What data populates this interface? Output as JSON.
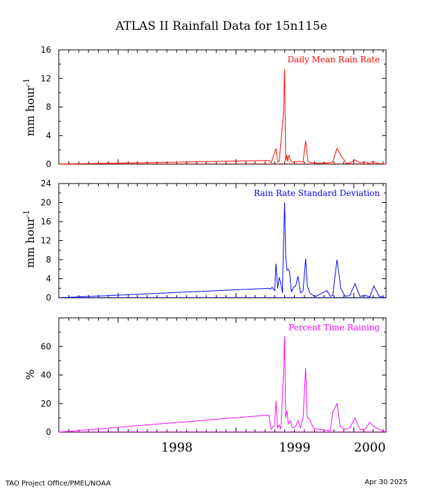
{
  "figure": {
    "title": "ATLAS II Rainfall Data for 15n115e",
    "footer_left": "TAO Project Office/PMEL/NOAA",
    "footer_right": "Apr 30 2025",
    "x_year_labels": [
      "1998",
      "1999",
      "2000"
    ]
  },
  "chart_data": [
    {
      "type": "line",
      "title": "Daily Mean Rain Rate",
      "ylabel": "mm hour",
      "ylabel_superscript": "-1",
      "ylim": [
        0,
        16
      ],
      "yticks": [
        "0",
        "4",
        "8",
        "12",
        "16"
      ],
      "xlim": [
        "1997-07-01",
        "2000-04-10"
      ],
      "color": "#ff0000",
      "grid": false,
      "legend": "none",
      "x": [
        "1997-07-01",
        "1999-04-13",
        "1999-04-20",
        "1999-05-05",
        "1999-05-10",
        "1999-05-15",
        "1999-05-28",
        "1999-06-01",
        "1999-06-04",
        "1999-06-08",
        "1999-06-10",
        "1999-06-14",
        "1999-06-18",
        "1999-06-25",
        "1999-07-05",
        "1999-07-15",
        "1999-07-28",
        "1999-08-05",
        "1999-08-12",
        "1999-08-20",
        "1999-09-01",
        "1999-09-10",
        "1999-10-20",
        "1999-10-28",
        "1999-11-10",
        "1999-11-25",
        "1999-12-10",
        "1999-12-23",
        "2000-01-05",
        "2000-01-20",
        "2000-02-05",
        "2000-02-20",
        "2000-03-01",
        "2000-03-15",
        "2000-04-10"
      ],
      "y": [
        0,
        0.5,
        0.2,
        2.2,
        0.3,
        0.4,
        7.0,
        13.3,
        0.4,
        1.3,
        0.4,
        1.3,
        0.6,
        0.3,
        0.3,
        0.4,
        0.3,
        3.3,
        0.4,
        0.2,
        0.2,
        0.1,
        0.2,
        0.3,
        2.2,
        1.0,
        0.1,
        0.2,
        0.6,
        0.2,
        0.3,
        0.1,
        0.4,
        0.1,
        0
      ]
    },
    {
      "type": "line",
      "title": "Rain Rate Standard Deviation",
      "ylabel": "mm hour",
      "ylabel_superscript": "-1",
      "ylim": [
        0,
        24
      ],
      "yticks": [
        "0",
        "4",
        "8",
        "12",
        "16",
        "20",
        "24"
      ],
      "xlim": [
        "1997-07-01",
        "2000-04-10"
      ],
      "color": "#0000ff",
      "grid": false,
      "legend": "none",
      "x": [
        "1997-07-01",
        "1999-04-13",
        "1999-04-18",
        "1999-04-23",
        "1999-05-01",
        "1999-05-05",
        "1999-05-10",
        "1999-05-15",
        "1999-05-20",
        "1999-05-25",
        "1999-05-28",
        "1999-06-01",
        "1999-06-04",
        "1999-06-08",
        "1999-06-12",
        "1999-06-16",
        "1999-06-22",
        "1999-06-28",
        "1999-07-05",
        "1999-07-12",
        "1999-07-20",
        "1999-07-28",
        "1999-08-05",
        "1999-08-10",
        "1999-08-18",
        "1999-08-28",
        "1999-09-05",
        "1999-10-10",
        "1999-10-20",
        "1999-10-28",
        "1999-11-10",
        "1999-11-22",
        "1999-12-05",
        "1999-12-20",
        "2000-01-05",
        "2000-01-20",
        "2000-02-05",
        "2000-02-20",
        "2000-03-03",
        "2000-03-20",
        "2000-04-10"
      ],
      "y": [
        0,
        2.0,
        1.8,
        2.2,
        1.5,
        7.2,
        2.0,
        4.3,
        3.0,
        1.0,
        10.8,
        20.0,
        9.0,
        5.8,
        6.0,
        5.5,
        1.2,
        2.2,
        2.5,
        4.5,
        1.0,
        1.5,
        8.2,
        2.5,
        1.0,
        0.5,
        0.3,
        1.5,
        0.3,
        0.5,
        8.0,
        2.0,
        0.3,
        0.5,
        3.0,
        0.3,
        0.5,
        0.2,
        2.5,
        0.3,
        0
      ]
    },
    {
      "type": "line",
      "title": "Percent Time Raining",
      "ylabel": "%",
      "ylim": [
        0,
        80
      ],
      "yticks": [
        "0",
        "20",
        "40",
        "60"
      ],
      "xlim": [
        "1997-07-01",
        "2000-04-10"
      ],
      "color": "#ff00ff",
      "grid": false,
      "legend": "none",
      "x": [
        "1997-07-01",
        "1999-04-13",
        "1999-04-20",
        "1999-05-01",
        "1999-05-05",
        "1999-05-10",
        "1999-05-15",
        "1999-05-20",
        "1999-05-28",
        "1999-06-01",
        "1999-06-04",
        "1999-06-08",
        "1999-06-12",
        "1999-06-18",
        "1999-06-25",
        "1999-07-05",
        "1999-07-12",
        "1999-07-20",
        "1999-07-28",
        "1999-08-05",
        "1999-08-10",
        "1999-08-18",
        "1999-08-28",
        "1999-09-10",
        "1999-10-20",
        "1999-10-28",
        "1999-11-10",
        "1999-11-20",
        "1999-12-05",
        "1999-12-20",
        "2000-01-05",
        "2000-01-20",
        "2000-02-05",
        "2000-02-20",
        "2000-03-03",
        "2000-03-20",
        "2000-04-10"
      ],
      "y": [
        0,
        12,
        2,
        5,
        22,
        3,
        5,
        2,
        40,
        67,
        10,
        15,
        6,
        8,
        3,
        4,
        8,
        3,
        10,
        45,
        10,
        9,
        3,
        2,
        1,
        14,
        20,
        4,
        2,
        3,
        10,
        2,
        2,
        7,
        4,
        2,
        0
      ]
    }
  ]
}
